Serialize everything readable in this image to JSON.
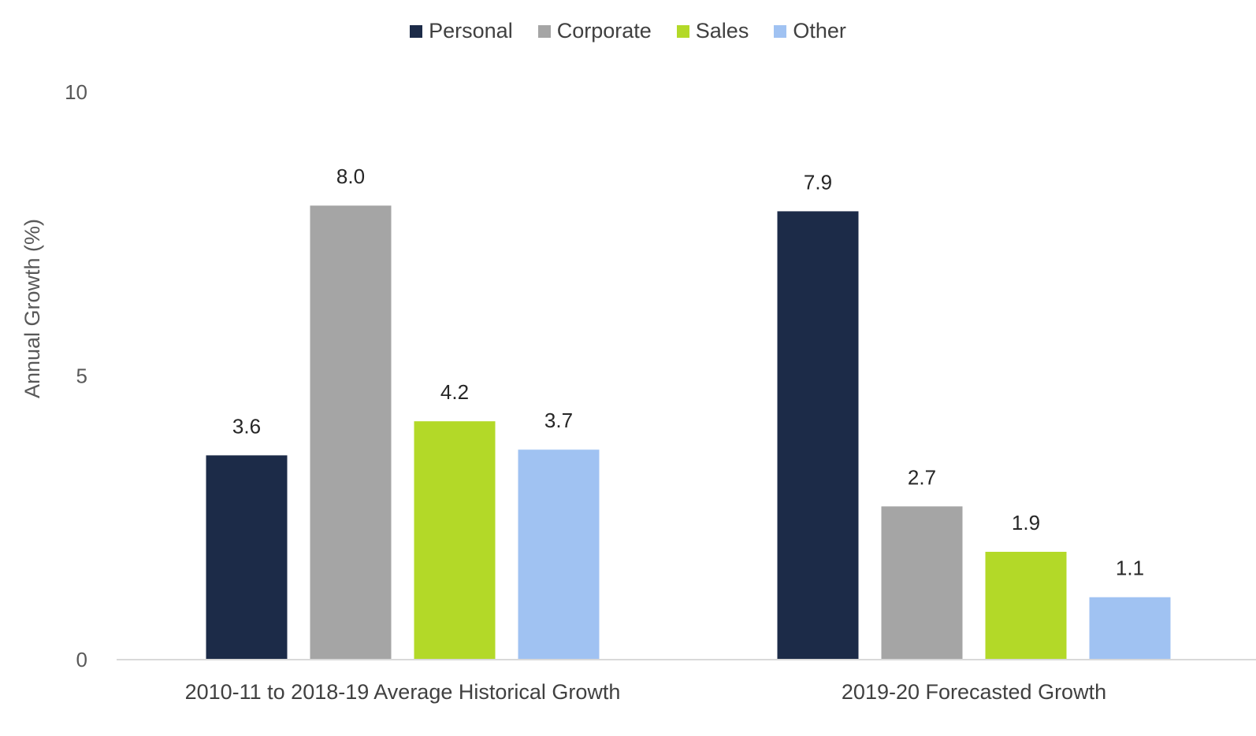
{
  "chart_data": {
    "type": "bar",
    "title": "",
    "xlabel": "",
    "ylabel": "Annual Growth (%)",
    "ylim": [
      0,
      10
    ],
    "yticks": [
      0,
      5,
      10
    ],
    "grid": false,
    "legend_position": "top-center",
    "categories": [
      "2010-11 to 2018-19 Average Historical Growth",
      "2019-20 Forecasted Growth"
    ],
    "series": [
      {
        "name": "Personal",
        "color": "#1c2b48",
        "values": [
          3.6,
          7.9
        ],
        "labels": [
          "3.6",
          "7.9"
        ]
      },
      {
        "name": "Corporate",
        "color": "#a5a5a5",
        "values": [
          8.0,
          2.7
        ],
        "labels": [
          "8.0",
          "2.7"
        ]
      },
      {
        "name": "Sales",
        "color": "#b3d928",
        "values": [
          4.2,
          1.9
        ],
        "labels": [
          "4.2",
          "1.9"
        ]
      },
      {
        "name": "Other",
        "color": "#a0c2f2",
        "values": [
          3.7,
          1.1
        ],
        "labels": [
          "3.7",
          "1.1"
        ]
      }
    ]
  }
}
